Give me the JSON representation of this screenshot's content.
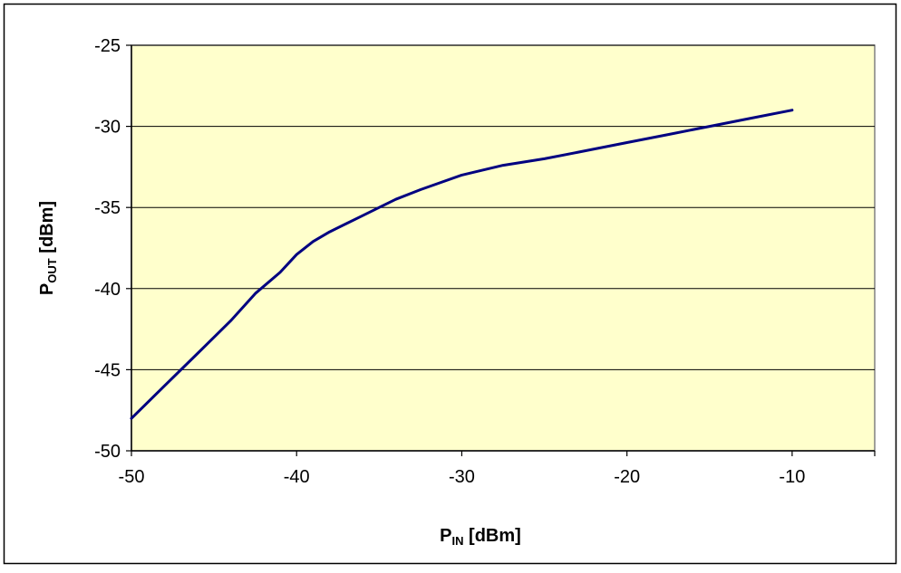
{
  "chart_data": {
    "type": "line",
    "title": "",
    "xlabel": {
      "main": "P",
      "sub": "IN",
      "unit": " [dBm]"
    },
    "ylabel": {
      "main": "P",
      "sub": "OUT",
      "unit": " [dBm]"
    },
    "xlim": [
      -50,
      -5
    ],
    "ylim": [
      -50,
      -25
    ],
    "x_ticks": [
      -50,
      -40,
      -30,
      -20,
      -10
    ],
    "y_ticks": [
      -25,
      -30,
      -35,
      -40,
      -45,
      -50
    ],
    "x_tick_labels": [
      "-50",
      "-40",
      "-30",
      "-20",
      "-10"
    ],
    "y_tick_labels": [
      "-25",
      "-30",
      "-35",
      "-40",
      "-45",
      "-50"
    ],
    "grid": {
      "horizontal": true,
      "vertical": false
    },
    "legend": "none",
    "series": [
      {
        "color": "#000080",
        "x": [
          -50,
          -48,
          -46,
          -44,
          -42.5,
          -41,
          -40,
          -39,
          -38,
          -37,
          -36,
          -35,
          -34,
          -32.5,
          -30,
          -27.5,
          -25,
          -22.5,
          -20,
          -17.5,
          -15,
          -12.5,
          -10
        ],
        "y": [
          -48,
          -46,
          -44,
          -42,
          -40.3,
          -39,
          -37.9,
          -37.1,
          -36.5,
          -36,
          -35.5,
          -35,
          -34.5,
          -33.9,
          -33,
          -32.4,
          -32,
          -31.5,
          -31,
          -30.5,
          -30,
          -29.5,
          -29
        ]
      }
    ]
  },
  "colors": {
    "plot_background": "#FFFFCC",
    "gridline": "#000000",
    "line": "#000080"
  }
}
